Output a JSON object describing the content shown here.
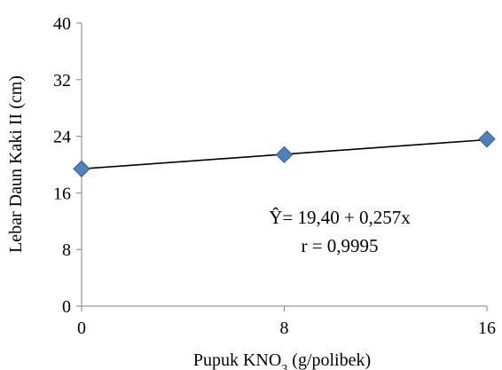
{
  "chart_data": {
    "type": "scatter",
    "x": [
      0,
      8,
      16
    ],
    "y": [
      19.4,
      21.4,
      23.6
    ],
    "xlim": [
      0,
      16
    ],
    "ylim": [
      0,
      40
    ],
    "xticks": [
      0,
      8,
      16
    ],
    "yticks": [
      0,
      8,
      16,
      24,
      32,
      40
    ],
    "xtick_labels": [
      "0",
      "8",
      "16"
    ],
    "ytick_labels": [
      "0",
      "8",
      "16",
      "24",
      "32",
      "40"
    ],
    "xlabel_main": "Pupuk KNO",
    "xlabel_sub": "3",
    "xlabel_tail": " (g/polibek)",
    "ylabel": "Lebar Daun Kaki II (cm)",
    "trendline": {
      "intercept": 19.4,
      "slope": 0.257
    },
    "annotation": {
      "equation": "Ŷ= 19,40 + 0,257x",
      "r": "r = 0,9995"
    },
    "grid": false,
    "marker": "diamond",
    "colors": {
      "marker": "#4F81BD",
      "marker_edge": "#385D8A",
      "line": "#000000",
      "axis": "#808080"
    }
  }
}
